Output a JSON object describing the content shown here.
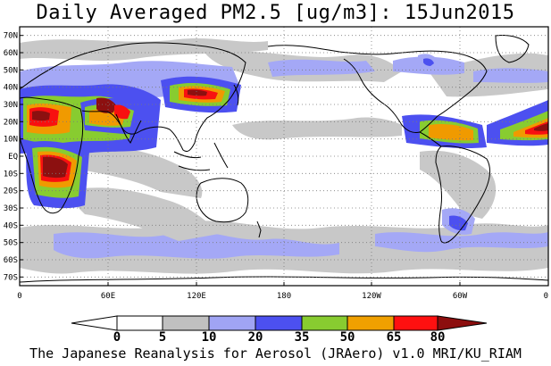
{
  "title": "Daily Averaged PM2.5 [ug/m3]: 15Jun2015",
  "credit": "The Japanese Reanalysis for Aerosol (JRAero) v1.0 MRI/KU_RIAM",
  "map": {
    "projection": "equirectangular",
    "lon_range": [
      0,
      360
    ],
    "lat_range": [
      -75,
      75
    ],
    "grid": "dotted",
    "lat_labels": [
      "70N",
      "60N",
      "50N",
      "40N",
      "30N",
      "20N",
      "10N",
      "EQ",
      "10S",
      "20S",
      "30S",
      "40S",
      "50S",
      "60S",
      "70S"
    ],
    "lon_labels": [
      "0",
      "60E",
      "120E",
      "180",
      "120W",
      "60W",
      "0"
    ]
  },
  "colorbar": {
    "ticks": [
      "0",
      "5",
      "10",
      "20",
      "35",
      "50",
      "65",
      "80"
    ],
    "colors": [
      "#ffffff",
      "#ffffff",
      "#c0c0c0",
      "#a0a4f4",
      "#4c50f0",
      "#88cc30",
      "#f0a000",
      "#ff1010",
      "#8c0e0e"
    ]
  },
  "field_levels": {
    "light_gray": "#c8c8c8",
    "light_blue": "#a4a8f6",
    "blue": "#4c50f0",
    "green": "#88cc30",
    "orange": "#f09a00",
    "red": "#f81010",
    "darkred": "#8c1010"
  }
}
